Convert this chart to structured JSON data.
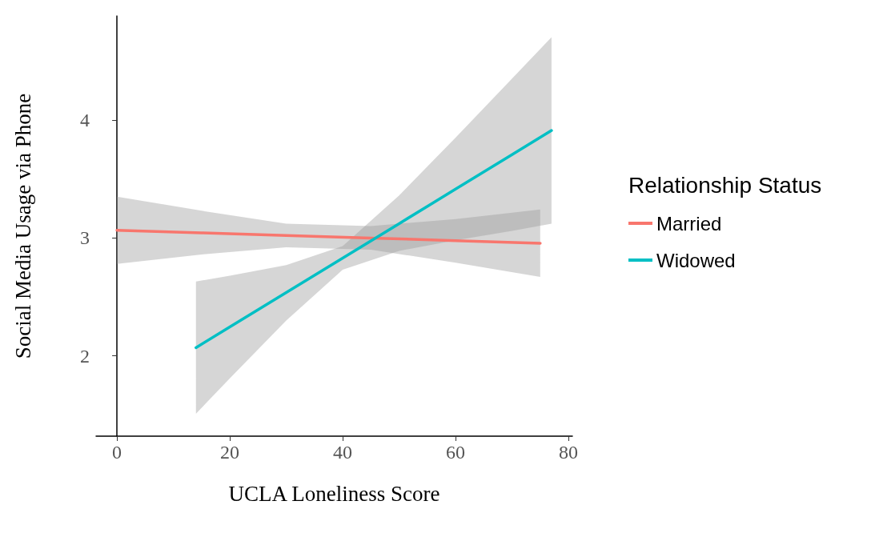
{
  "chart_data": {
    "type": "line",
    "xlabel": "UCLA Loneliness Score",
    "ylabel": "Social Media Usage via Phone",
    "legend_title": "Relationship Status",
    "legend": "right",
    "grid": false,
    "marker": "none",
    "line_style": "solid",
    "xlim": [
      -3.7,
      80.7
    ],
    "xticks": [
      0,
      20,
      40,
      60,
      80
    ],
    "ylim": [
      1.32,
      4.88
    ],
    "yticks": [
      2,
      3,
      4
    ],
    "series": [
      {
        "name": "Married",
        "color": "#f8766d",
        "x": [
          0,
          15,
          30,
          45,
          60,
          75
        ],
        "values": [
          3.065,
          3.043,
          3.021,
          2.999,
          2.977,
          2.955
        ],
        "lower": [
          2.78,
          2.86,
          2.92,
          2.9,
          2.79,
          2.67
        ],
        "upper": [
          3.35,
          3.23,
          3.12,
          3.1,
          3.16,
          3.24
        ]
      },
      {
        "name": "Widowed",
        "color": "#00bfc4",
        "x": [
          14,
          20,
          30,
          40,
          50,
          60,
          70,
          77
        ],
        "values": [
          2.07,
          2.245,
          2.537,
          2.829,
          3.121,
          3.413,
          3.705,
          3.91
        ],
        "lower": [
          1.51,
          1.81,
          2.3,
          2.73,
          2.89,
          2.98,
          3.06,
          3.12
        ],
        "upper": [
          2.63,
          2.68,
          2.77,
          2.93,
          3.36,
          3.85,
          4.35,
          4.7
        ]
      }
    ]
  }
}
